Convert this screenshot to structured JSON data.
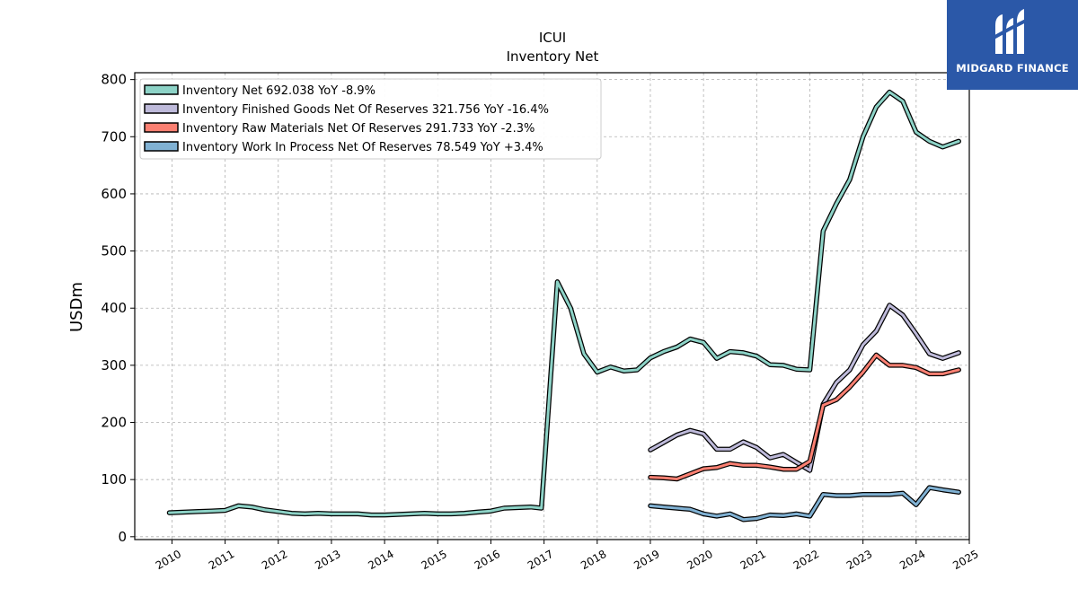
{
  "brand": {
    "name": "MIDGARD FINANCE",
    "bg_color": "#2b58a8"
  },
  "chart_data": {
    "type": "line",
    "title": "ICUI",
    "subtitle": "Inventory Net",
    "ylabel": "USDm",
    "xlabel": "",
    "xlim": [
      2009.3,
      2025.0
    ],
    "ylim": [
      -5,
      812
    ],
    "x_ticks": [
      2010,
      2011,
      2012,
      2013,
      2014,
      2015,
      2016,
      2017,
      2018,
      2019,
      2020,
      2021,
      2022,
      2023,
      2024,
      2025
    ],
    "x_tick_labels": [
      "2010",
      "2011",
      "2012",
      "2013",
      "2014",
      "2015",
      "2016",
      "2017",
      "2018",
      "2019",
      "2020",
      "2021",
      "2022",
      "2023",
      "2024",
      "2025"
    ],
    "y_ticks": [
      0,
      100,
      200,
      300,
      400,
      500,
      600,
      700,
      800
    ],
    "y_tick_labels": [
      "0",
      "100",
      "200",
      "300",
      "400",
      "500",
      "600",
      "700",
      "800"
    ],
    "grid": true,
    "legend_position": "top-left",
    "series": [
      {
        "name": "Inventory Net",
        "legend_label": "Inventory Net  692.038 YoY -8.9%",
        "color": "#8dd3c7",
        "points": [
          [
            2009.95,
            42
          ],
          [
            2010.25,
            43
          ],
          [
            2010.5,
            44
          ],
          [
            2010.75,
            45
          ],
          [
            2011.0,
            46
          ],
          [
            2011.25,
            54
          ],
          [
            2011.5,
            52
          ],
          [
            2011.75,
            47
          ],
          [
            2012.0,
            44
          ],
          [
            2012.25,
            41
          ],
          [
            2012.5,
            40
          ],
          [
            2012.75,
            41
          ],
          [
            2013.0,
            40
          ],
          [
            2013.25,
            40
          ],
          [
            2013.5,
            40
          ],
          [
            2013.75,
            38
          ],
          [
            2014.0,
            38
          ],
          [
            2014.25,
            39
          ],
          [
            2014.5,
            40
          ],
          [
            2014.75,
            41
          ],
          [
            2015.0,
            40
          ],
          [
            2015.25,
            40
          ],
          [
            2015.5,
            41
          ],
          [
            2015.75,
            43
          ],
          [
            2016.0,
            45
          ],
          [
            2016.25,
            50
          ],
          [
            2016.5,
            51
          ],
          [
            2016.75,
            52
          ],
          [
            2016.95,
            50
          ],
          [
            2017.25,
            446
          ],
          [
            2017.5,
            400
          ],
          [
            2017.75,
            320
          ],
          [
            2018.0,
            288
          ],
          [
            2018.25,
            297
          ],
          [
            2018.5,
            290
          ],
          [
            2018.75,
            292
          ],
          [
            2019.0,
            313
          ],
          [
            2019.25,
            324
          ],
          [
            2019.5,
            332
          ],
          [
            2019.75,
            346
          ],
          [
            2020.0,
            340
          ],
          [
            2020.25,
            312
          ],
          [
            2020.5,
            324
          ],
          [
            2020.75,
            322
          ],
          [
            2021.0,
            316
          ],
          [
            2021.25,
            301
          ],
          [
            2021.5,
            300
          ],
          [
            2021.75,
            293
          ],
          [
            2022.0,
            292
          ],
          [
            2022.25,
            535
          ],
          [
            2022.5,
            583
          ],
          [
            2022.75,
            625
          ],
          [
            2023.0,
            700
          ],
          [
            2023.25,
            752
          ],
          [
            2023.5,
            778
          ],
          [
            2023.75,
            762
          ],
          [
            2024.0,
            708
          ],
          [
            2024.25,
            692
          ],
          [
            2024.5,
            682
          ],
          [
            2024.8,
            692
          ]
        ]
      },
      {
        "name": "Inventory Finished Goods Net Of Reserves",
        "legend_label": "Inventory Finished Goods Net Of Reserves  321.756 YoY -16.4%",
        "color": "#bebada",
        "points": [
          [
            2019.0,
            152
          ],
          [
            2019.25,
            165
          ],
          [
            2019.5,
            178
          ],
          [
            2019.75,
            186
          ],
          [
            2020.0,
            180
          ],
          [
            2020.25,
            153
          ],
          [
            2020.5,
            153
          ],
          [
            2020.75,
            166
          ],
          [
            2021.0,
            156
          ],
          [
            2021.25,
            138
          ],
          [
            2021.5,
            144
          ],
          [
            2021.75,
            130
          ],
          [
            2022.0,
            116
          ],
          [
            2022.25,
            232
          ],
          [
            2022.5,
            270
          ],
          [
            2022.75,
            292
          ],
          [
            2023.0,
            336
          ],
          [
            2023.25,
            360
          ],
          [
            2023.5,
            405
          ],
          [
            2023.75,
            388
          ],
          [
            2024.0,
            355
          ],
          [
            2024.25,
            320
          ],
          [
            2024.5,
            312
          ],
          [
            2024.8,
            322
          ]
        ]
      },
      {
        "name": "Inventory Raw Materials Net Of Reserves",
        "legend_label": "Inventory Raw Materials Net Of Reserves  291.733 YoY -2.3%",
        "color": "#fb8072",
        "points": [
          [
            2019.0,
            104
          ],
          [
            2019.25,
            103
          ],
          [
            2019.5,
            101
          ],
          [
            2019.75,
            110
          ],
          [
            2020.0,
            119
          ],
          [
            2020.25,
            121
          ],
          [
            2020.5,
            128
          ],
          [
            2020.75,
            125
          ],
          [
            2021.0,
            125
          ],
          [
            2021.25,
            122
          ],
          [
            2021.5,
            118
          ],
          [
            2021.75,
            118
          ],
          [
            2022.0,
            132
          ],
          [
            2022.25,
            230
          ],
          [
            2022.5,
            240
          ],
          [
            2022.75,
            262
          ],
          [
            2023.0,
            288
          ],
          [
            2023.25,
            318
          ],
          [
            2023.5,
            300
          ],
          [
            2023.75,
            300
          ],
          [
            2024.0,
            296
          ],
          [
            2024.25,
            285
          ],
          [
            2024.5,
            285
          ],
          [
            2024.8,
            292
          ]
        ]
      },
      {
        "name": "Inventory Work In Process Net Of Reserves",
        "legend_label": "Inventory Work In Process Net Of Reserves  78.549 YoY +3.4%",
        "color": "#80b1d3",
        "points": [
          [
            2019.0,
            54
          ],
          [
            2019.25,
            52
          ],
          [
            2019.5,
            50
          ],
          [
            2019.75,
            48
          ],
          [
            2020.0,
            40
          ],
          [
            2020.25,
            36
          ],
          [
            2020.5,
            40
          ],
          [
            2020.75,
            30
          ],
          [
            2021.0,
            32
          ],
          [
            2021.25,
            38
          ],
          [
            2021.5,
            37
          ],
          [
            2021.75,
            40
          ],
          [
            2022.0,
            36
          ],
          [
            2022.25,
            74
          ],
          [
            2022.5,
            72
          ],
          [
            2022.75,
            72
          ],
          [
            2023.0,
            74
          ],
          [
            2023.25,
            74
          ],
          [
            2023.5,
            74
          ],
          [
            2023.75,
            76
          ],
          [
            2024.0,
            56
          ],
          [
            2024.25,
            86
          ],
          [
            2024.5,
            82
          ],
          [
            2024.8,
            78
          ]
        ]
      }
    ]
  }
}
